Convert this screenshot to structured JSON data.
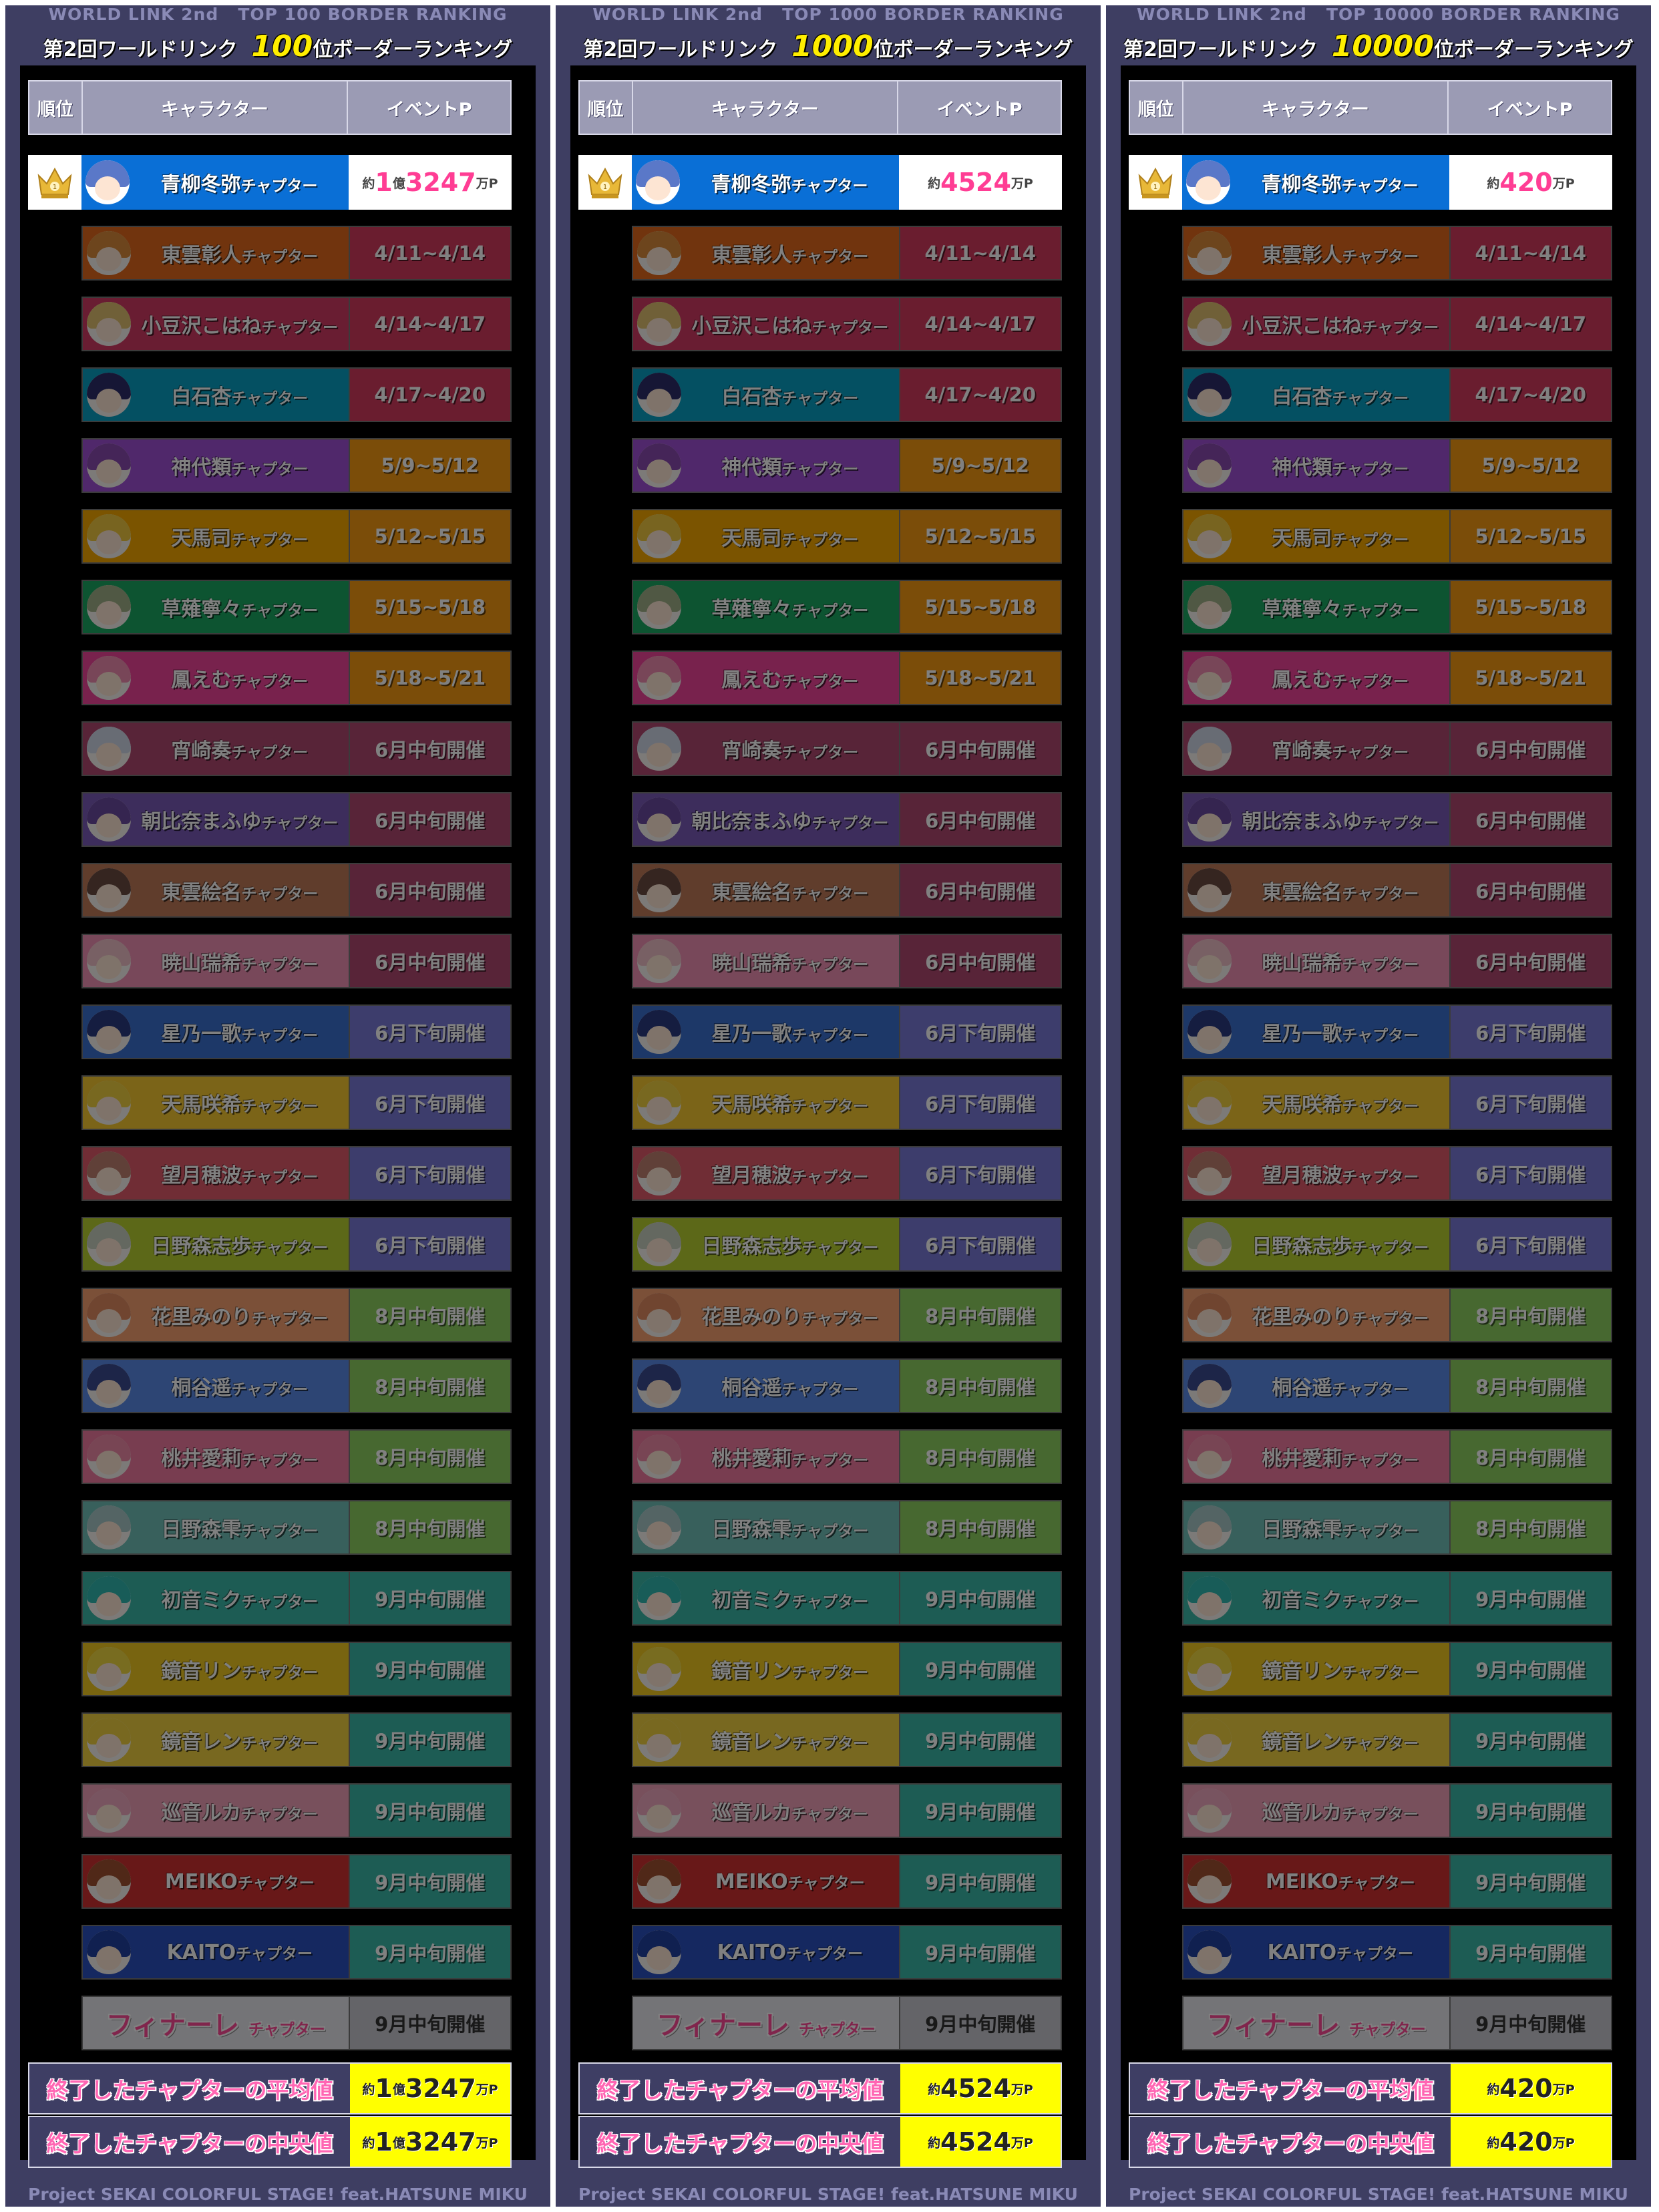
{
  "subtitle_prefix": "WORLD LINK 2nd",
  "title_prefix": "第2回ワールドリンク",
  "title_suffix": "位ボーダーランキング",
  "header": {
    "rank": "順位",
    "character": "キャラクター",
    "points": "イベントP"
  },
  "chapter_suffix": "チャプター",
  "approx": "約",
  "oku": "億",
  "man_p": "万P",
  "stats": {
    "avg_label": "終了したチャプターの平均値",
    "median_label": "終了したチャプターの中央値"
  },
  "footer": "Project SEKAI COLORFUL STAGE! feat.HATSUNE MIKU",
  "panels": [
    {
      "border_label": "TOP 100 BORDER RANKING",
      "border_num": "100",
      "top_oku": "1",
      "top_man": "3247",
      "avg_oku": "1",
      "avg_man": "3247",
      "median_oku": "1",
      "median_man": "3247"
    },
    {
      "border_label": "TOP 1000 BORDER RANKING",
      "border_num": "1000",
      "top_oku": "",
      "top_man": "4524",
      "avg_oku": "",
      "avg_man": "4524",
      "median_oku": "",
      "median_man": "4524"
    },
    {
      "border_label": "TOP 10000 BORDER RANKING",
      "border_num": "10000",
      "top_oku": "",
      "top_man": "420",
      "avg_oku": "",
      "avg_man": "420",
      "median_oku": "",
      "median_man": "420"
    }
  ],
  "top_entry": {
    "name": "青柳冬弥",
    "color": "#0a6fd6",
    "hair": "#5a78c8"
  },
  "chapters": [
    {
      "name": "東雲彰人",
      "date": "4/11~4/14",
      "color": "#e2691c",
      "pcolor": "#d43a5e",
      "hair": "#d98a3a"
    },
    {
      "name": "小豆沢こはね",
      "date": "4/14~4/17",
      "color": "#d13a64",
      "pcolor": "#d43a5e",
      "hair": "#e0c070"
    },
    {
      "name": "白石杏",
      "date": "4/17~4/20",
      "color": "#08a0c4",
      "pcolor": "#d43a5e",
      "hair": "#2c2c6a"
    },
    {
      "name": "神代類",
      "date": "5/9~5/12",
      "color": "#a050d6",
      "pcolor": "#f59a12",
      "hair": "#8a4ab0"
    },
    {
      "name": "天馬司",
      "date": "5/12~5/15",
      "color": "#f5a800",
      "pcolor": "#f59a12",
      "hair": "#f0c840"
    },
    {
      "name": "草薙寧々",
      "date": "5/15~5/18",
      "color": "#1ba862",
      "pcolor": "#f59a12",
      "hair": "#a0b088"
    },
    {
      "name": "鳳えむ",
      "date": "5/18~5/21",
      "color": "#f0449a",
      "pcolor": "#f59a12",
      "hair": "#f08cb0"
    },
    {
      "name": "宵崎奏",
      "date": "6月中旬開催",
      "color": "#b04870",
      "pcolor": "#b04870",
      "hair": "#d0d8e8"
    },
    {
      "name": "朝比奈まふゆ",
      "date": "6月中旬開催",
      "color": "#7a5ab8",
      "pcolor": "#b04870",
      "hair": "#6a4aa0"
    },
    {
      "name": "東雲絵名",
      "date": "6月中旬開催",
      "color": "#c07a58",
      "pcolor": "#b04870",
      "hair": "#6a4a40"
    },
    {
      "name": "暁山瑞希",
      "date": "6月中旬開催",
      "color": "#f090b4",
      "pcolor": "#b04870",
      "hair": "#f0c0c8"
    },
    {
      "name": "星乃一歌",
      "date": "6月下旬開催",
      "color": "#3a70d0",
      "pcolor": "#7a7ad8",
      "hair": "#2a3a80"
    },
    {
      "name": "天馬咲希",
      "date": "6月下旬開催",
      "color": "#f5c830",
      "pcolor": "#7a7ad8",
      "hair": "#f0d040"
    },
    {
      "name": "望月穂波",
      "date": "6月下旬開催",
      "color": "#e05a6a",
      "pcolor": "#7a7ad8",
      "hair": "#c08070"
    },
    {
      "name": "日野森志歩",
      "date": "6月下旬開催",
      "color": "#b8d030",
      "pcolor": "#7a7ad8",
      "hair": "#c8d0c0"
    },
    {
      "name": "花里みのり",
      "date": "8月中旬開催",
      "color": "#f5a070",
      "pcolor": "#8ed060",
      "hair": "#e08a60"
    },
    {
      "name": "桐谷遥",
      "date": "8月中旬開催",
      "color": "#5a8ae8",
      "pcolor": "#8ed060",
      "hair": "#3a4a90"
    },
    {
      "name": "桃井愛莉",
      "date": "8月中旬開催",
      "color": "#f07aa0",
      "pcolor": "#8ed060",
      "hair": "#f08aa8"
    },
    {
      "name": "日野森雫",
      "date": "8月中旬開催",
      "color": "#70c0b8",
      "pcolor": "#8ed060",
      "hair": "#a8c8c8"
    },
    {
      "name": "初音ミク",
      "date": "9月中旬開催",
      "color": "#3ab8a8",
      "pcolor": "#3ab8a8",
      "hair": "#30b8b0"
    },
    {
      "name": "鏡音リン",
      "date": "9月中旬開催",
      "color": "#f0c820",
      "pcolor": "#3ab8a8",
      "hair": "#f0d840"
    },
    {
      "name": "鏡音レン",
      "date": "9月中旬開催",
      "color": "#f0d040",
      "pcolor": "#3ab8a8",
      "hair": "#f0d040"
    },
    {
      "name": "巡音ルカ",
      "date": "9月中旬開催",
      "color": "#f0a0b8",
      "pcolor": "#3ab8a8",
      "hair": "#f0a8c0"
    },
    {
      "name": "MEIKO",
      "date": "9月中旬開催",
      "color": "#d03030",
      "pcolor": "#3ab8a8",
      "hair": "#a05030"
    },
    {
      "name": "KAITO",
      "date": "9月中旬開催",
      "color": "#2a50c0",
      "pcolor": "#3ab8a8",
      "hair": "#2040a0"
    }
  ],
  "finale": {
    "name": "フィナーレ",
    "date": "9月中旬開催",
    "color": "#e8e8ee",
    "pcolor": "#c8c8d0"
  }
}
